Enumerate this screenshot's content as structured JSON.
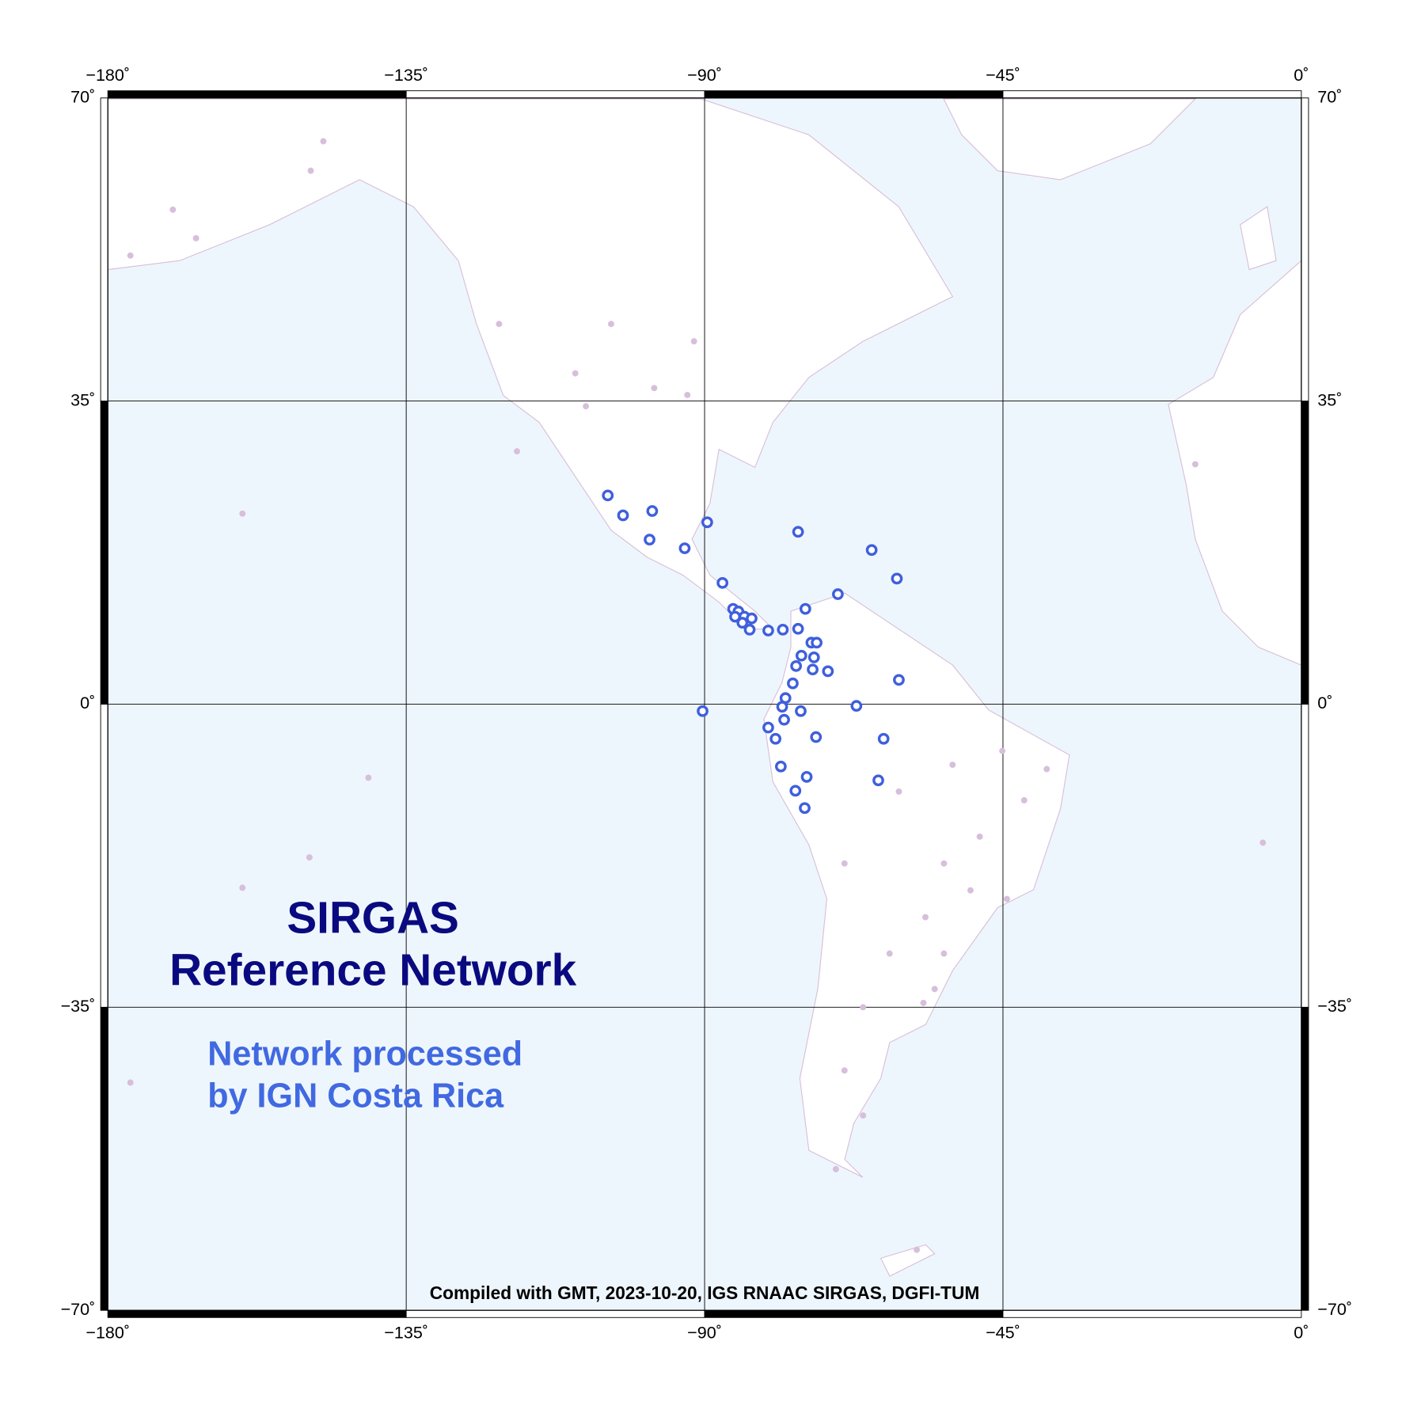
{
  "title": [
    "SIRGAS",
    "Reference Network"
  ],
  "subtitle": [
    "Network processed",
    "by IGN Costa Rica"
  ],
  "footer": "Compiled with GMT, 2023-10-20, IGS RNAAC SIRGAS, DGFI-TUM",
  "map": {
    "xlim": [
      -180,
      0
    ],
    "ylim": [
      -70,
      70
    ],
    "xticks": [
      {
        "value": -180,
        "label": "−180˚"
      },
      {
        "value": -135,
        "label": "−135˚"
      },
      {
        "value": -90,
        "label": "−90˚"
      },
      {
        "value": -45,
        "label": "−45˚"
      },
      {
        "value": 0,
        "label": "0˚"
      }
    ],
    "yticks": [
      {
        "value": -70,
        "label": "−70˚"
      },
      {
        "value": -35,
        "label": "−35˚"
      },
      {
        "value": 0,
        "label": "0˚"
      },
      {
        "value": 35,
        "label": "35˚"
      },
      {
        "value": 70,
        "label": "70˚"
      }
    ],
    "grid": true,
    "stations_other": {
      "color": "#d7bfdc",
      "lon": [
        -147.5,
        -149.4,
        -170.2,
        -166.7,
        -176.6,
        -121.0,
        -104.1,
        -91.6,
        -109.5,
        -97.6,
        -92.6,
        -107.9,
        -118.3,
        -159.7,
        -140.7,
        -149.6,
        -159.7,
        -176.6,
        -5.8,
        -16.0,
        -45.1,
        -38.4,
        -41.8,
        -48.5,
        -53.9,
        -49.9,
        -44.4,
        -56.7,
        -62.1,
        -53.9,
        -55.3,
        -66.1,
        -57.0,
        -68.9,
        -66.1,
        -70.2,
        -58.0,
        -68.9,
        -60.7,
        -52.6
      ],
      "lat": [
        65.0,
        61.6,
        57.1,
        53.8,
        51.8,
        43.9,
        43.9,
        41.9,
        38.2,
        36.5,
        35.7,
        34.4,
        29.2,
        22.0,
        -8.5,
        -17.7,
        -21.2,
        -43.7,
        -16.0,
        27.7,
        -5.4,
        -7.5,
        -11.1,
        -15.3,
        -18.4,
        -21.5,
        -22.5,
        -24.6,
        -28.8,
        -28.8,
        -32.9,
        -35.0,
        -34.5,
        -42.3,
        -47.5,
        -53.7,
        -63.0,
        -18.4,
        -10.1,
        -7.0
      ]
    },
    "stations_ign": {
      "color": "#3f5fdc",
      "lon": [
        -104.6,
        -102.3,
        -97.9,
        -98.3,
        -93.0,
        -89.6,
        -75.9,
        -64.8,
        -61.0,
        -87.3,
        -69.9,
        -74.8,
        -85.7,
        -84.9,
        -85.4,
        -84.0,
        -82.9,
        -84.3,
        -83.2,
        -80.4,
        -78.2,
        -75.9,
        -73.9,
        -73.1,
        -75.4,
        -73.5,
        -76.2,
        -73.7,
        -71.4,
        -60.7,
        -76.7,
        -77.8,
        -67.1,
        -78.3,
        -75.5,
        -90.3,
        -78.0,
        -80.4,
        -79.3,
        -73.2,
        -63.0,
        -78.5,
        -74.6,
        -63.8,
        -76.3,
        -74.9
      ],
      "lat": [
        24.1,
        21.8,
        22.3,
        19.0,
        18.0,
        21.0,
        19.9,
        17.8,
        14.5,
        14.0,
        12.7,
        11.0,
        11.0,
        10.7,
        10.1,
        10.1,
        9.9,
        9.4,
        8.6,
        8.5,
        8.6,
        8.7,
        7.1,
        7.1,
        5.6,
        5.4,
        4.4,
        4.0,
        3.8,
        2.8,
        2.4,
        0.7,
        -0.2,
        -0.3,
        -0.8,
        -0.8,
        -1.8,
        -2.7,
        -4.0,
        -3.8,
        -4.0,
        -7.2,
        -8.4,
        -8.8,
        -10.0,
        -12.0
      ]
    }
  }
}
